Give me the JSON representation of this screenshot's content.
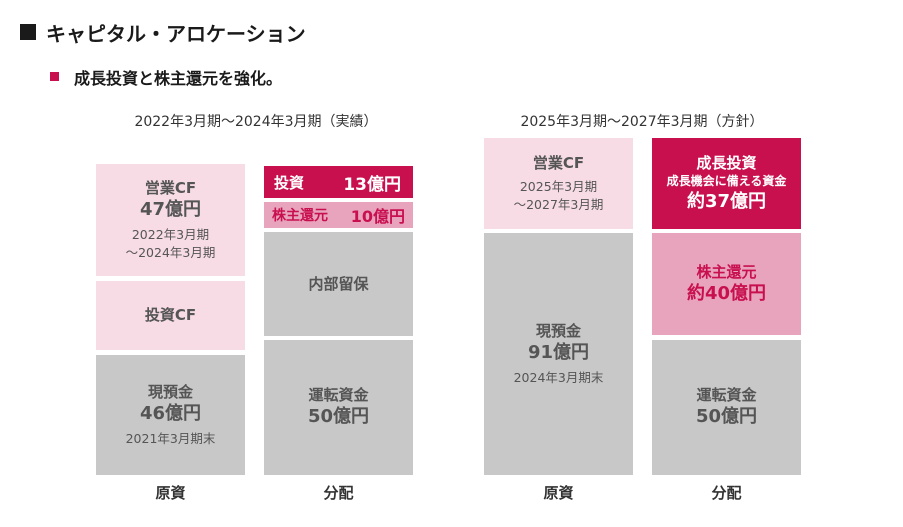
{
  "header": {
    "title": "キャピタル・アロケーション",
    "subtitle": "成長投資と株主還元を強化。"
  },
  "colors": {
    "accent_magenta": "#c8104f",
    "light_pink": "#f7dce6",
    "mid_pink": "#e8a3bd",
    "gray": "#c8c8c8"
  },
  "left": {
    "period": "2022年3月期〜2024年3月期（実績）",
    "source": {
      "operating_cf": {
        "label": "営業CF",
        "value": "47億円",
        "note1": "2022年3月期",
        "note2": "〜2024年3月期"
      },
      "investing_cf": {
        "label": "投資CF"
      },
      "cash": {
        "label": "現預金",
        "value": "46億円",
        "note": "2021年3月期末"
      },
      "footer": "原資"
    },
    "allocation": {
      "investment": {
        "label": "投資",
        "value": "13億円"
      },
      "shareholder_return": {
        "label": "株主還元",
        "value": "10億円"
      },
      "retained": {
        "label": "内部留保"
      },
      "working_capital": {
        "label": "運転資金",
        "value": "50億円"
      },
      "footer": "分配"
    }
  },
  "right": {
    "period": "2025年3月期〜2027年3月期（方針）",
    "source": {
      "operating_cf": {
        "label": "営業CF",
        "note1": "2025年3月期",
        "note2": "〜2027年3月期"
      },
      "cash": {
        "label": "現預金",
        "value": "91億円",
        "note": "2024年3月期末"
      },
      "footer": "原資"
    },
    "allocation": {
      "growth_investment": {
        "label": "成長投資",
        "note": "成長機会に備える資金",
        "value": "約37億円"
      },
      "shareholder_return": {
        "label": "株主還元",
        "value": "約40億円"
      },
      "working_capital": {
        "label": "運転資金",
        "value": "50億円"
      },
      "footer": "分配"
    }
  }
}
